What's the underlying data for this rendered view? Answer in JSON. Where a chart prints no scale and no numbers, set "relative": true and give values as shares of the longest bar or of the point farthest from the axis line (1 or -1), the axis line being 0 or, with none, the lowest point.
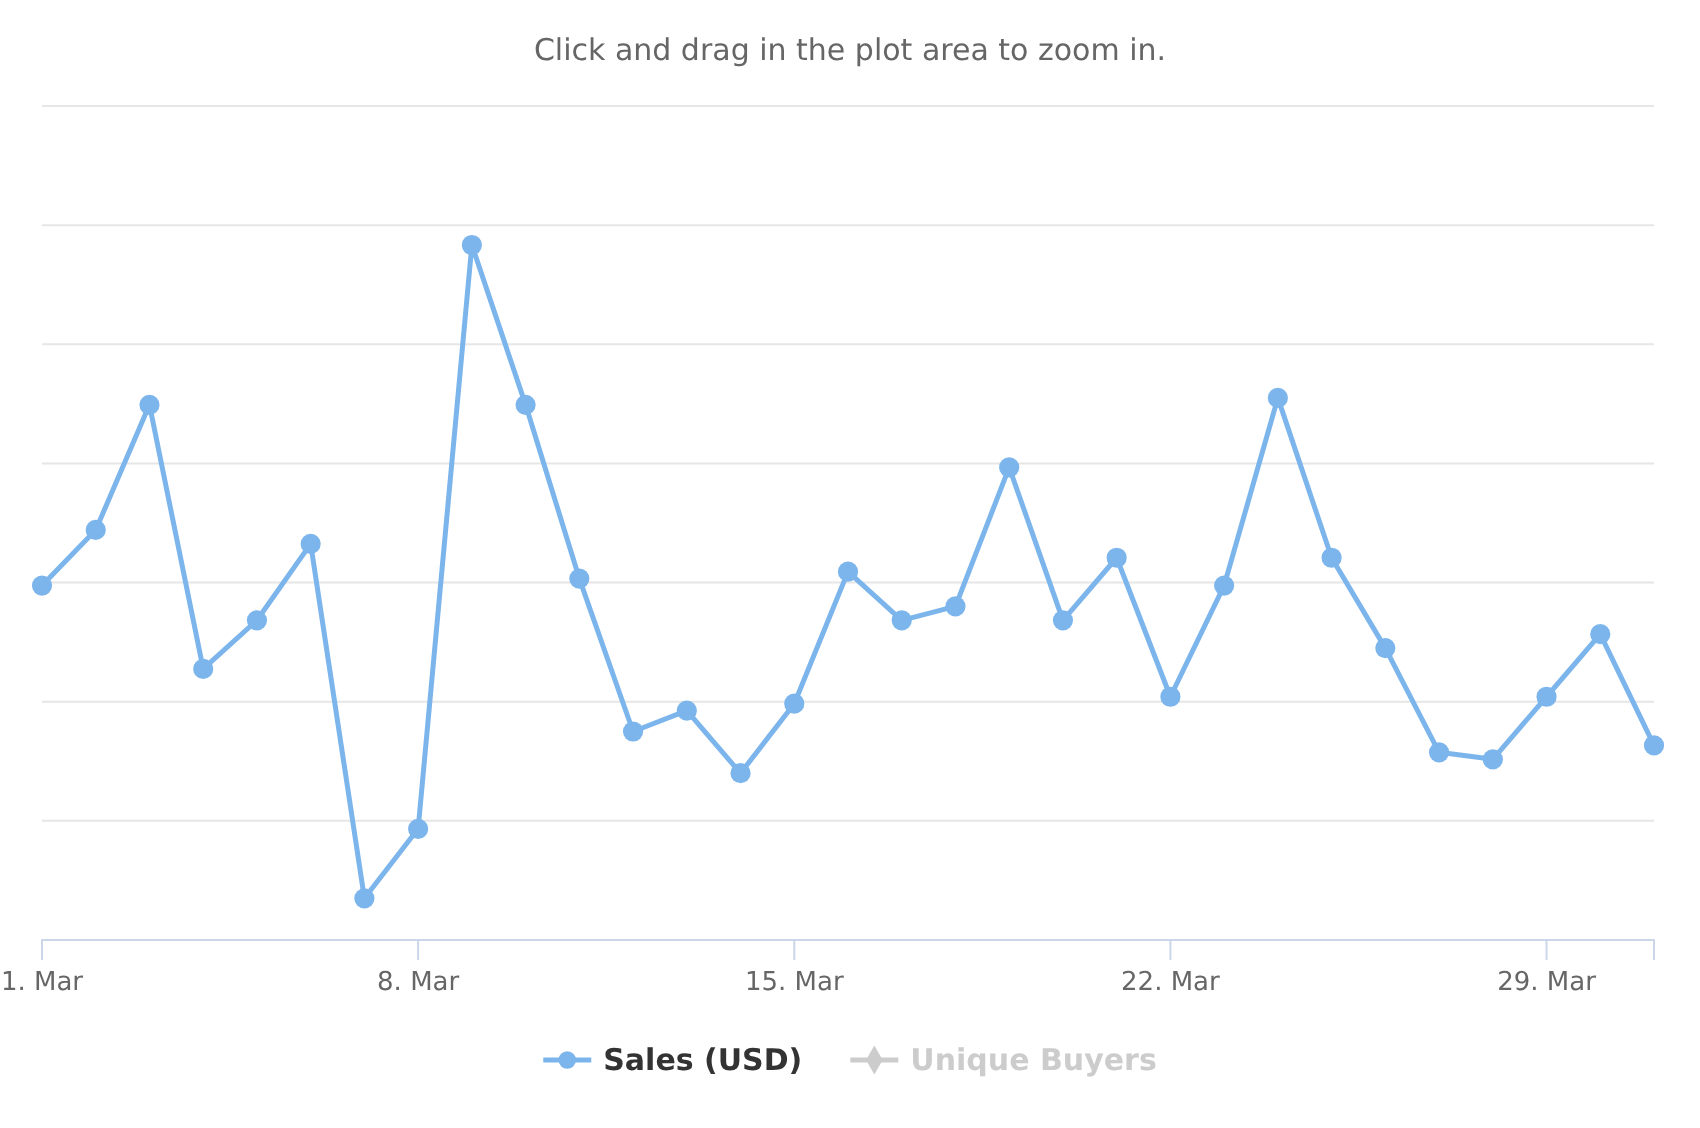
{
  "chart_data": {
    "type": "line",
    "subtitle": "Click and drag in the plot area to zoom in.",
    "x": [
      "--03-01",
      "--03-02",
      "--03-03",
      "--03-04",
      "--03-05",
      "--03-06",
      "--03-07",
      "--03-08",
      "--03-09",
      "--03-10",
      "--03-11",
      "--03-12",
      "--03-13",
      "--03-14",
      "--03-15",
      "--03-16",
      "--03-17",
      "--03-18",
      "--03-19",
      "--03-20",
      "--03-21",
      "--03-22",
      "--03-23",
      "--03-24",
      "--03-25",
      "--03-26",
      "--03-27",
      "--03-28",
      "--03-29",
      "--03-30",
      "--03-31"
    ],
    "xlim": [
      "--03-01",
      "--03-31"
    ],
    "xticks": [
      {
        "value": "--03-01",
        "label": "1. Mar"
      },
      {
        "value": "--03-08",
        "label": "8. Mar"
      },
      {
        "value": "--03-15",
        "label": "15. Mar"
      },
      {
        "value": "--03-22",
        "label": "22. Mar"
      },
      {
        "value": "--03-29",
        "label": "29. Mar"
      }
    ],
    "relative": true,
    "grid": "y",
    "legend": "bottom",
    "marker": "circle",
    "series": [
      {
        "name": "Sales (USD)",
        "color": "#7cb5ec",
        "values": [
          0.51,
          0.59,
          0.77,
          0.39,
          0.46,
          0.57,
          0.06,
          0.16,
          1,
          0.77,
          0.52,
          0.3,
          0.33,
          0.24,
          0.34,
          0.53,
          0.46,
          0.48,
          0.68,
          0.46,
          0.55,
          0.35,
          0.51,
          0.78,
          0.55,
          0.42,
          0.27,
          0.26,
          0.35,
          0.44,
          0.28
        ]
      },
      {
        "name": "Unique Buyers",
        "color": "#cccccc",
        "marker": "diamond",
        "values": [
          null,
          null,
          null,
          null,
          null,
          null,
          null,
          null,
          null,
          null,
          null,
          null,
          null,
          null,
          null,
          null,
          null,
          null,
          null,
          null,
          null,
          null,
          null,
          null,
          null,
          null,
          null,
          null,
          null,
          null,
          null
        ]
      }
    ]
  }
}
